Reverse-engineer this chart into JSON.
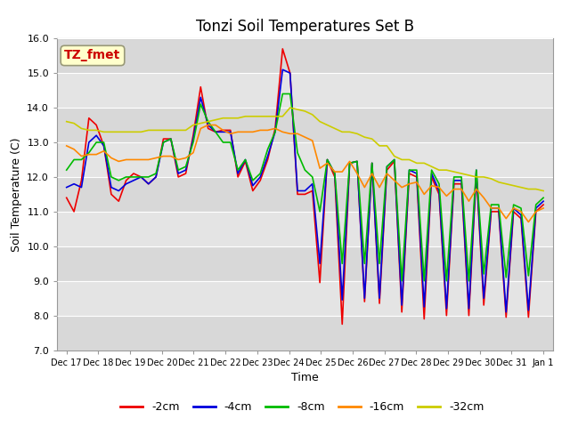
{
  "title": "Tonzi Soil Temperatures Set B",
  "xlabel": "Time",
  "ylabel": "Soil Temperature (C)",
  "ylim": [
    7.0,
    16.0
  ],
  "yticks": [
    7.0,
    8.0,
    9.0,
    10.0,
    11.0,
    12.0,
    13.0,
    14.0,
    15.0,
    16.0
  ],
  "series_colors": {
    "-2cm": "#ee0000",
    "-4cm": "#0000dd",
    "-8cm": "#00bb00",
    "-16cm": "#ff8800",
    "-32cm": "#cccc00"
  },
  "legend_labels": [
    "-2cm",
    "-4cm",
    "-8cm",
    "-16cm",
    "-32cm"
  ],
  "annotation_text": "TZ_fmet",
  "annotation_text_color": "#cc0000",
  "annotation_box_color": "#ffffcc",
  "plot_bg_color": "#dddddd",
  "band_color1": "#cccccc",
  "band_color2": "#e0e0e0",
  "x_tick_labels": [
    "Dec 17",
    "Dec 18",
    "Dec 19",
    "Dec 20",
    "Dec 21",
    "Dec 22",
    "Dec 23",
    "Dec 24",
    "Dec 25",
    "Dec 26",
    "Dec 27",
    "Dec 28",
    "Dec 29",
    "Dec 30",
    "Dec 31",
    "Jan 1"
  ],
  "series": {
    "-2cm": [
      11.4,
      11.0,
      11.9,
      13.7,
      13.5,
      12.9,
      11.5,
      11.3,
      11.9,
      12.1,
      12.0,
      11.8,
      12.0,
      13.1,
      13.1,
      12.0,
      12.1,
      13.2,
      14.6,
      13.4,
      13.3,
      13.35,
      13.35,
      12.0,
      12.45,
      11.6,
      11.9,
      12.5,
      13.4,
      15.7,
      15.0,
      11.5,
      11.5,
      11.6,
      8.95,
      12.5,
      12.0,
      7.75,
      12.4,
      12.45,
      8.4,
      12.4,
      8.35,
      12.2,
      12.45,
      8.1,
      12.1,
      12.0,
      7.9,
      12.0,
      11.5,
      8.0,
      11.8,
      11.8,
      8.0,
      12.1,
      8.3,
      11.0,
      11.0,
      7.95,
      11.0,
      10.8,
      7.95,
      11.0,
      11.2
    ],
    "-4cm": [
      11.7,
      11.8,
      11.7,
      13.0,
      13.2,
      12.9,
      11.7,
      11.6,
      11.8,
      11.9,
      12.0,
      11.8,
      12.0,
      13.0,
      13.1,
      12.1,
      12.2,
      13.1,
      14.3,
      13.5,
      13.3,
      13.3,
      13.3,
      12.1,
      12.5,
      11.75,
      12.0,
      12.6,
      13.3,
      15.1,
      15.0,
      11.6,
      11.6,
      11.8,
      9.5,
      12.5,
      12.1,
      8.45,
      12.4,
      12.45,
      8.5,
      12.4,
      8.5,
      12.3,
      12.5,
      8.3,
      12.2,
      12.1,
      8.25,
      12.1,
      11.6,
      8.2,
      11.9,
      11.9,
      8.2,
      12.2,
      8.5,
      11.1,
      11.1,
      8.1,
      11.1,
      10.9,
      8.15,
      11.1,
      11.3
    ],
    "-8cm": [
      12.2,
      12.5,
      12.5,
      12.7,
      13.0,
      13.0,
      12.0,
      11.9,
      12.0,
      12.0,
      12.0,
      12.0,
      12.1,
      13.0,
      13.1,
      12.2,
      12.3,
      13.0,
      14.1,
      13.6,
      13.3,
      13.0,
      13.0,
      12.2,
      12.5,
      11.9,
      12.1,
      12.8,
      13.3,
      14.4,
      14.4,
      12.7,
      12.2,
      12.0,
      11.0,
      12.5,
      12.1,
      9.5,
      12.4,
      12.45,
      9.5,
      12.4,
      9.5,
      12.3,
      12.5,
      9.0,
      12.2,
      12.2,
      9.0,
      12.2,
      11.8,
      9.0,
      12.0,
      12.0,
      9.0,
      12.2,
      9.2,
      11.2,
      11.2,
      9.1,
      11.2,
      11.1,
      9.15,
      11.2,
      11.4
    ],
    "-16cm": [
      12.9,
      12.8,
      12.6,
      12.65,
      12.65,
      12.75,
      12.55,
      12.45,
      12.5,
      12.5,
      12.5,
      12.5,
      12.55,
      12.6,
      12.6,
      12.5,
      12.55,
      12.7,
      13.4,
      13.5,
      13.5,
      13.35,
      13.25,
      13.3,
      13.3,
      13.3,
      13.35,
      13.35,
      13.4,
      13.3,
      13.25,
      13.25,
      13.15,
      13.05,
      12.25,
      12.4,
      12.15,
      12.15,
      12.45,
      12.1,
      11.7,
      12.1,
      11.7,
      12.1,
      11.9,
      11.7,
      11.8,
      11.85,
      11.5,
      11.75,
      11.7,
      11.45,
      11.65,
      11.65,
      11.3,
      11.65,
      11.4,
      11.1,
      11.1,
      10.8,
      11.1,
      11.0,
      10.7,
      11.0,
      11.1
    ],
    "-32cm": [
      13.6,
      13.55,
      13.4,
      13.35,
      13.35,
      13.3,
      13.3,
      13.3,
      13.3,
      13.3,
      13.3,
      13.35,
      13.35,
      13.35,
      13.35,
      13.35,
      13.35,
      13.5,
      13.55,
      13.6,
      13.65,
      13.7,
      13.7,
      13.7,
      13.75,
      13.75,
      13.75,
      13.75,
      13.75,
      13.75,
      14.0,
      13.95,
      13.9,
      13.8,
      13.6,
      13.5,
      13.4,
      13.3,
      13.3,
      13.25,
      13.15,
      13.1,
      12.9,
      12.9,
      12.6,
      12.5,
      12.5,
      12.4,
      12.4,
      12.3,
      12.2,
      12.2,
      12.15,
      12.1,
      12.05,
      12.0,
      12.0,
      11.95,
      11.85,
      11.8,
      11.75,
      11.7,
      11.65,
      11.65,
      11.6
    ]
  }
}
